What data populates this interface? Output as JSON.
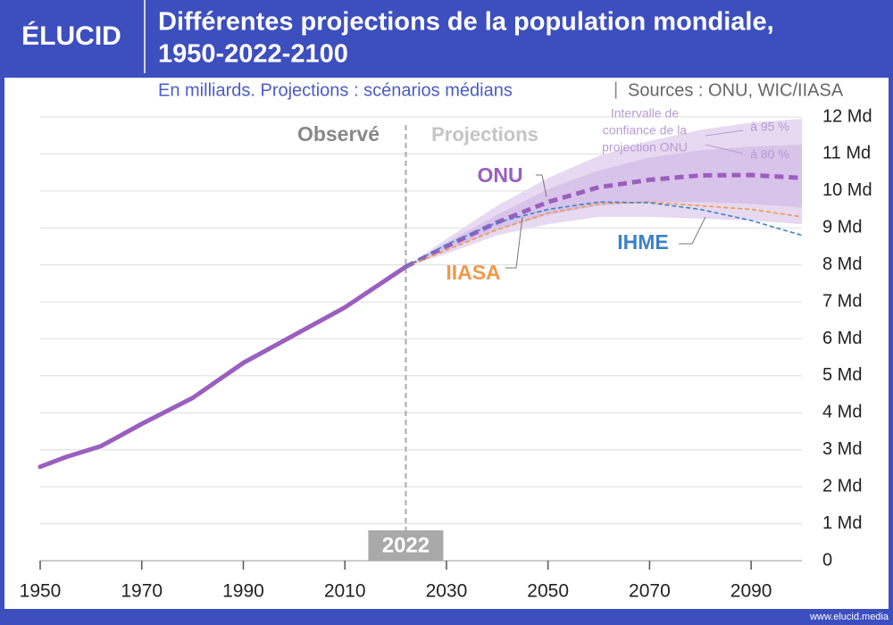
{
  "brand": "ÉLUCID",
  "footer": "www.elucid.media",
  "chart_data": {
    "type": "line",
    "title_lines": [
      "Différentes projections de la population mondiale,",
      "1950-2022-2100"
    ],
    "subtitle": "En milliards. Projections : scénarios médians",
    "source": "Sources : ONU, WIC/IIASA",
    "xlim": [
      1950,
      2100
    ],
    "xticks": [
      1950,
      1970,
      1990,
      2010,
      2030,
      2050,
      2070,
      2090
    ],
    "ylim": [
      0,
      12
    ],
    "yticks": [
      0,
      {
        "value": 1,
        "label": "1 Md"
      },
      {
        "value": 2,
        "label": "2 Md"
      },
      {
        "value": 3,
        "label": "3 Md"
      },
      {
        "value": 4,
        "label": "4 Md"
      },
      {
        "value": 5,
        "label": "5 Md"
      },
      {
        "value": 6,
        "label": "6 Md"
      },
      {
        "value": 7,
        "label": "7 Md"
      },
      {
        "value": 8,
        "label": "8 Md"
      },
      {
        "value": 9,
        "label": "9 Md"
      },
      {
        "value": 10,
        "label": "10 Md"
      },
      {
        "value": 11,
        "label": "11 Md"
      },
      {
        "value": 12,
        "label": "12 Md"
      }
    ],
    "grid": true,
    "divider_x": 2022,
    "projection_label": "Projections",
    "series": [
      {
        "name": "Observé",
        "color": "#9a5fbf",
        "dashed": false,
        "x": [
          1950,
          1955,
          1962,
          1970,
          1980,
          1990,
          2000,
          2010,
          2022
        ],
        "values": [
          2.54,
          2.8,
          3.1,
          3.7,
          4.4,
          5.35,
          6.1,
          6.85,
          7.95
        ]
      },
      {
        "name": "ONU",
        "color": "#9a5fbf",
        "dashed": true,
        "x": [
          2022,
          2030,
          2040,
          2050,
          2060,
          2070,
          2080,
          2090,
          2100
        ],
        "values": [
          7.95,
          8.5,
          9.15,
          9.7,
          10.1,
          10.3,
          10.42,
          10.43,
          10.35
        ]
      },
      {
        "name": "IIASA",
        "color": "#f0994a",
        "dashed": true,
        "x": [
          2022,
          2030,
          2040,
          2050,
          2060,
          2070,
          2080,
          2090,
          2100
        ],
        "values": [
          7.95,
          8.4,
          8.95,
          9.4,
          9.65,
          9.7,
          9.6,
          9.5,
          9.3
        ]
      },
      {
        "name": "IHME",
        "color": "#3a82c8",
        "dashed": true,
        "x": [
          2022,
          2030,
          2040,
          2050,
          2060,
          2070,
          2080,
          2090,
          2100
        ],
        "values": [
          7.95,
          8.55,
          9.15,
          9.5,
          9.7,
          9.68,
          9.5,
          9.2,
          8.8
        ]
      }
    ],
    "ci_note_lines": [
      "Intervalle de",
      "confiance de la",
      "projection ONU"
    ],
    "bands": [
      {
        "name": "à 95 %",
        "color": "#e6d9f1",
        "x": [
          2022,
          2030,
          2040,
          2050,
          2060,
          2070,
          2080,
          2090,
          2100
        ],
        "lower": [
          7.95,
          8.3,
          8.8,
          9.1,
          9.3,
          9.3,
          9.25,
          9.2,
          9.1
        ],
        "upper": [
          7.95,
          8.7,
          9.6,
          10.35,
          10.95,
          11.35,
          11.65,
          11.85,
          11.95
        ]
      },
      {
        "name": "à 80 %",
        "color": "#d8c3ea",
        "x": [
          2022,
          2030,
          2040,
          2050,
          2060,
          2070,
          2080,
          2090,
          2100
        ],
        "lower": [
          7.95,
          8.4,
          8.95,
          9.35,
          9.6,
          9.7,
          9.7,
          9.65,
          9.55
        ],
        "upper": [
          7.95,
          8.6,
          9.35,
          10.05,
          10.55,
          10.9,
          11.1,
          11.2,
          11.25
        ]
      }
    ]
  }
}
